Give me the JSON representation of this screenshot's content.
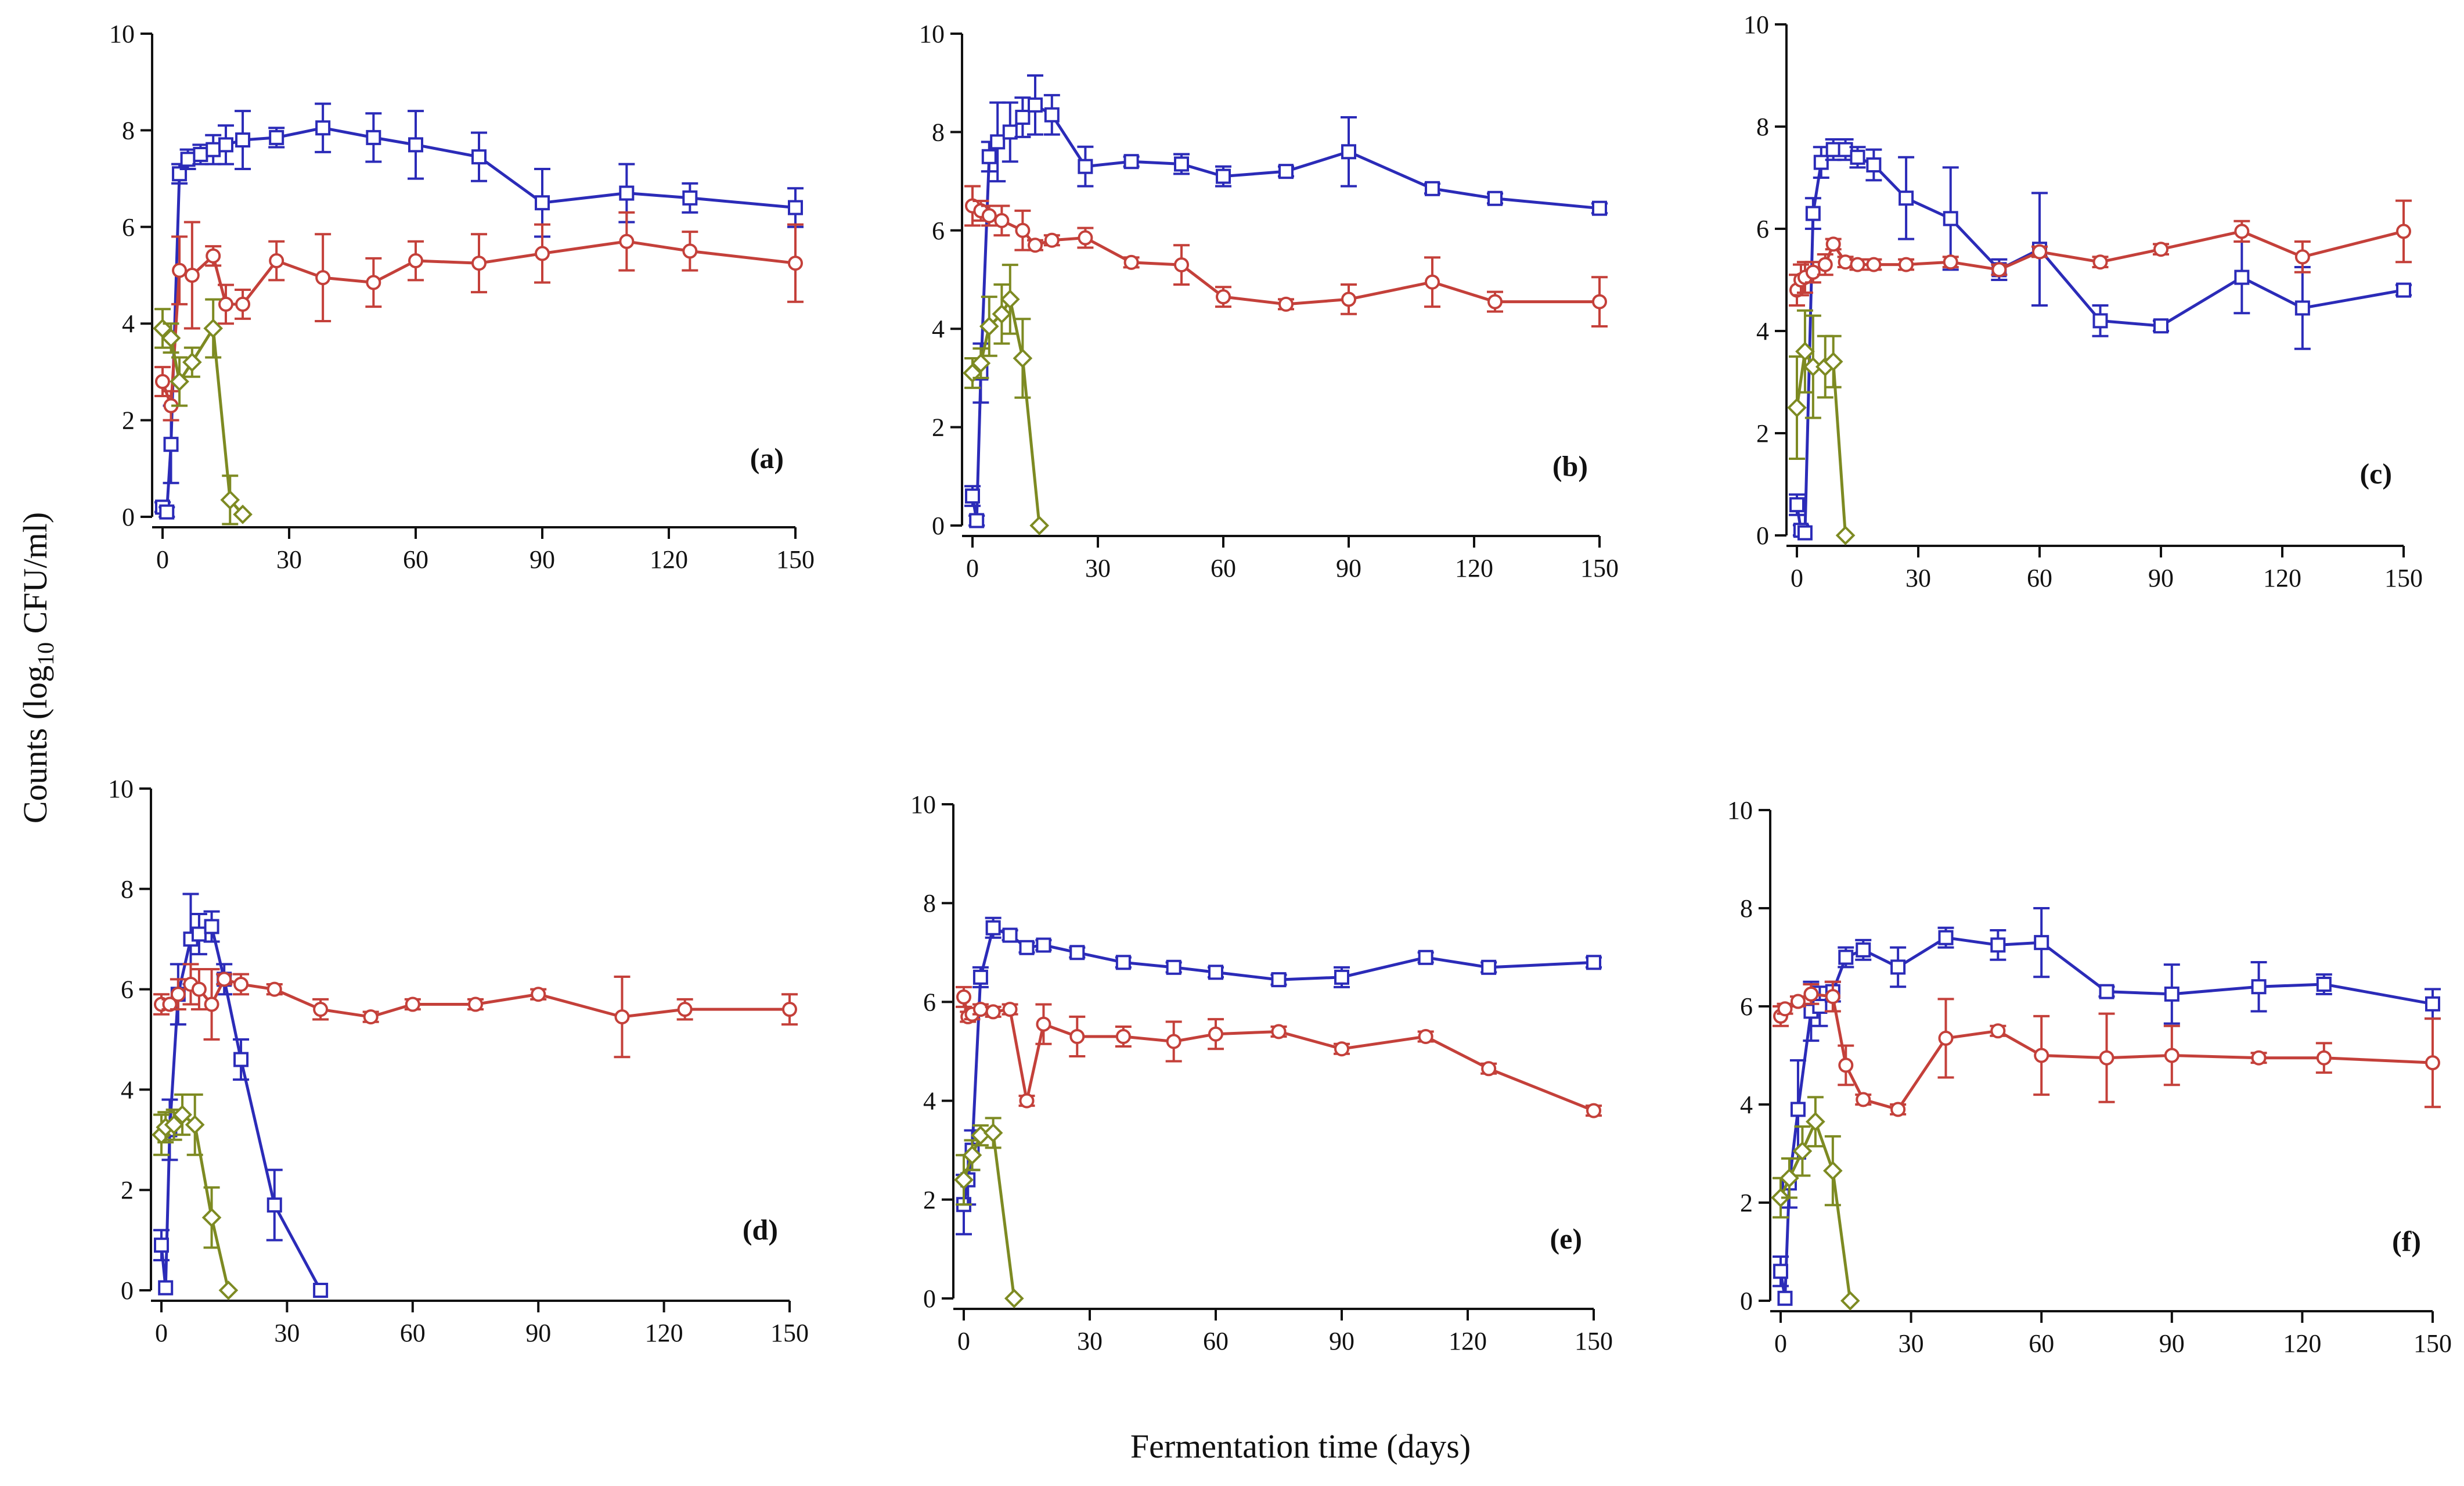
{
  "figure": {
    "ylabel": "Counts (log10 CFU/ml)",
    "ylabel_main": "Counts (log",
    "ylabel_sub": "10",
    "ylabel_tail": " CFU/ml)",
    "xlabel": "Fermentation time (days)"
  },
  "series_styles": [
    {
      "key": "blue",
      "color": "#2b2bb8",
      "marker": "square"
    },
    {
      "key": "red",
      "color": "#c4403a",
      "marker": "circle"
    },
    {
      "key": "olive",
      "color": "#7d8a22",
      "marker": "diamond"
    }
  ],
  "chart_data": [
    {
      "type": "line",
      "panel": "(a)",
      "xlim": [
        0,
        150
      ],
      "ylim": [
        0,
        10
      ],
      "xticks": [
        0,
        30,
        60,
        90,
        120,
        150
      ],
      "yticks": [
        0,
        2,
        4,
        6,
        8,
        10
      ],
      "series": [
        {
          "style": "blue",
          "x": [
            0,
            1,
            2,
            4,
            6,
            9,
            12,
            15,
            19,
            27,
            38,
            50,
            60,
            75,
            90,
            110,
            125,
            150
          ],
          "y": [
            0.2,
            0.1,
            1.5,
            7.1,
            7.4,
            7.5,
            7.6,
            7.7,
            7.8,
            7.85,
            8.05,
            7.85,
            7.7,
            7.45,
            6.5,
            6.7,
            6.6,
            6.4
          ],
          "err": [
            0.1,
            0.1,
            0.8,
            0.2,
            0.2,
            0.2,
            0.3,
            0.4,
            0.6,
            0.2,
            0.5,
            0.5,
            0.7,
            0.5,
            0.7,
            0.6,
            0.3,
            0.4
          ]
        },
        {
          "style": "red",
          "x": [
            0,
            2,
            4,
            7,
            12,
            15,
            19,
            27,
            38,
            50,
            60,
            75,
            90,
            110,
            125,
            150
          ],
          "y": [
            2.8,
            2.3,
            5.1,
            5.0,
            5.4,
            4.4,
            4.4,
            5.3,
            4.95,
            4.85,
            5.3,
            5.25,
            5.45,
            5.7,
            5.5,
            5.25
          ],
          "err": [
            0.3,
            0.3,
            0.7,
            1.1,
            0.2,
            0.4,
            0.3,
            0.4,
            0.9,
            0.5,
            0.4,
            0.6,
            0.6,
            0.6,
            0.4,
            0.8
          ]
        },
        {
          "style": "olive",
          "x": [
            0,
            2,
            4,
            7,
            12,
            16,
            19
          ],
          "y": [
            3.9,
            3.7,
            2.8,
            3.2,
            3.9,
            0.35,
            0.05
          ],
          "err": [
            0.4,
            0.3,
            0.5,
            0.3,
            0.6,
            0.5,
            0.05
          ]
        }
      ]
    },
    {
      "type": "line",
      "panel": "(b)",
      "xlim": [
        0,
        150
      ],
      "ylim": [
        0,
        10
      ],
      "xticks": [
        0,
        30,
        60,
        90,
        120,
        150
      ],
      "yticks": [
        0,
        2,
        4,
        6,
        8,
        10
      ],
      "series": [
        {
          "style": "blue",
          "x": [
            0,
            1,
            2,
            4,
            6,
            9,
            12,
            15,
            19,
            27,
            38,
            50,
            60,
            75,
            90,
            110,
            125,
            150
          ],
          "y": [
            0.6,
            0.1,
            3.1,
            7.5,
            7.8,
            8.0,
            8.3,
            8.55,
            8.35,
            7.3,
            7.4,
            7.35,
            7.1,
            7.2,
            7.6,
            6.85,
            6.65,
            6.45
          ],
          "err": [
            0.2,
            0.1,
            0.6,
            0.3,
            0.8,
            0.6,
            0.4,
            0.6,
            0.4,
            0.4,
            0.1,
            0.2,
            0.2,
            0.1,
            0.7,
            0.1,
            0.1,
            0.1
          ]
        },
        {
          "style": "red",
          "x": [
            0,
            2,
            4,
            7,
            12,
            15,
            19,
            27,
            38,
            50,
            60,
            75,
            90,
            110,
            125,
            150
          ],
          "y": [
            6.5,
            6.4,
            6.3,
            6.2,
            6.0,
            5.7,
            5.8,
            5.85,
            5.35,
            5.3,
            4.65,
            4.5,
            4.6,
            4.95,
            4.55,
            4.55
          ],
          "err": [
            0.4,
            0.2,
            0.2,
            0.3,
            0.4,
            0.1,
            0.1,
            0.2,
            0.1,
            0.4,
            0.2,
            0.1,
            0.3,
            0.5,
            0.2,
            0.5
          ]
        },
        {
          "style": "olive",
          "x": [
            0,
            2,
            4,
            7,
            9,
            12,
            16
          ],
          "y": [
            3.1,
            3.3,
            4.05,
            4.3,
            4.6,
            3.4,
            0.0
          ],
          "err": [
            0.3,
            0.3,
            0.6,
            0.6,
            0.7,
            0.8,
            0.05
          ]
        }
      ]
    },
    {
      "type": "line",
      "panel": "(c)",
      "xlim": [
        0,
        150
      ],
      "ylim": [
        0,
        10
      ],
      "xticks": [
        0,
        30,
        60,
        90,
        120,
        150
      ],
      "yticks": [
        0,
        2,
        4,
        6,
        8,
        10
      ],
      "series": [
        {
          "style": "blue",
          "x": [
            0,
            1,
            2,
            4,
            6,
            9,
            12,
            15,
            19,
            27,
            38,
            50,
            60,
            75,
            90,
            110,
            125,
            150
          ],
          "y": [
            0.6,
            0.1,
            0.05,
            6.3,
            7.3,
            7.55,
            7.55,
            7.4,
            7.25,
            6.6,
            6.2,
            5.2,
            5.6,
            4.2,
            4.1,
            5.05,
            4.45,
            4.8
          ],
          "err": [
            0.2,
            0.1,
            0.05,
            0.3,
            0.3,
            0.2,
            0.2,
            0.2,
            0.3,
            0.8,
            1.0,
            0.2,
            1.1,
            0.3,
            0.1,
            0.7,
            0.8,
            0.1
          ]
        },
        {
          "style": "red",
          "x": [
            0,
            1,
            2,
            4,
            7,
            9,
            12,
            15,
            19,
            27,
            38,
            50,
            60,
            75,
            90,
            110,
            125,
            150
          ],
          "y": [
            4.8,
            5.0,
            5.05,
            5.15,
            5.3,
            5.7,
            5.35,
            5.3,
            5.3,
            5.3,
            5.35,
            5.2,
            5.55,
            5.35,
            5.6,
            5.95,
            5.45,
            5.95
          ],
          "err": [
            0.3,
            0.3,
            0.3,
            0.2,
            0.2,
            0.1,
            0.1,
            0.1,
            0.1,
            0.1,
            0.1,
            0.1,
            0.1,
            0.1,
            0.1,
            0.2,
            0.3,
            0.6
          ]
        },
        {
          "style": "olive",
          "x": [
            0,
            2,
            4,
            7,
            9,
            12
          ],
          "y": [
            2.5,
            3.6,
            3.3,
            3.3,
            3.4,
            0.0
          ],
          "err": [
            1.0,
            0.8,
            1.0,
            0.6,
            0.5,
            0.05
          ]
        }
      ]
    },
    {
      "type": "line",
      "panel": "(d)",
      "xlim": [
        0,
        150
      ],
      "ylim": [
        0,
        10
      ],
      "xticks": [
        0,
        30,
        60,
        90,
        120,
        150
      ],
      "yticks": [
        0,
        2,
        4,
        6,
        8,
        10
      ],
      "series": [
        {
          "style": "blue",
          "x": [
            0,
            1,
            2,
            4,
            7,
            9,
            12,
            15,
            19,
            27,
            38
          ],
          "y": [
            0.9,
            0.05,
            3.2,
            5.9,
            7.0,
            7.1,
            7.25,
            6.2,
            4.6,
            1.7,
            0.0
          ],
          "err": [
            0.3,
            0.05,
            0.6,
            0.6,
            0.9,
            0.4,
            0.3,
            0.3,
            0.4,
            0.7,
            0.05
          ]
        },
        {
          "style": "red",
          "x": [
            0,
            2,
            4,
            7,
            9,
            12,
            15,
            19,
            27,
            38,
            50,
            60,
            75,
            90,
            110,
            125,
            150
          ],
          "y": [
            5.7,
            5.7,
            5.9,
            6.1,
            6.0,
            5.7,
            6.2,
            6.1,
            6.0,
            5.6,
            5.45,
            5.7,
            5.7,
            5.9,
            5.45,
            5.6,
            5.6
          ],
          "err": [
            0.2,
            0.1,
            0.3,
            0.4,
            0.4,
            0.7,
            0.1,
            0.2,
            0.1,
            0.2,
            0.1,
            0.1,
            0.1,
            0.1,
            0.8,
            0.2,
            0.3
          ]
        },
        {
          "style": "olive",
          "x": [
            0,
            1,
            3,
            5,
            8,
            12,
            16
          ],
          "y": [
            3.1,
            3.25,
            3.3,
            3.5,
            3.3,
            1.45,
            0.0
          ],
          "err": [
            0.4,
            0.3,
            0.3,
            0.4,
            0.6,
            0.6,
            0.05
          ]
        }
      ]
    },
    {
      "type": "line",
      "panel": "(e)",
      "xlim": [
        0,
        150
      ],
      "ylim": [
        0,
        10
      ],
      "xticks": [
        0,
        30,
        60,
        90,
        120,
        150
      ],
      "yticks": [
        0,
        2,
        4,
        6,
        8,
        10
      ],
      "series": [
        {
          "style": "blue",
          "x": [
            0,
            1,
            2,
            4,
            7,
            11,
            15,
            19,
            27,
            38,
            50,
            60,
            75,
            90,
            110,
            125,
            150
          ],
          "y": [
            1.9,
            2.4,
            3.0,
            6.5,
            7.5,
            7.35,
            7.1,
            7.15,
            7.0,
            6.8,
            6.7,
            6.6,
            6.45,
            6.5,
            6.9,
            6.7,
            6.8
          ],
          "err": [
            0.6,
            0.5,
            0.4,
            0.2,
            0.2,
            0.1,
            0.1,
            0.1,
            0.1,
            0.1,
            0.1,
            0.1,
            0.1,
            0.2,
            0.1,
            0.1,
            0.1
          ]
        },
        {
          "style": "red",
          "x": [
            0,
            1,
            2,
            4,
            7,
            11,
            15,
            19,
            27,
            38,
            50,
            60,
            75,
            90,
            110,
            125,
            150
          ],
          "y": [
            6.1,
            5.7,
            5.75,
            5.85,
            5.8,
            5.85,
            4.0,
            5.55,
            5.3,
            5.3,
            5.2,
            5.35,
            5.4,
            5.05,
            5.3,
            4.65,
            3.8
          ],
          "err": [
            0.2,
            0.1,
            0.1,
            0.1,
            0.1,
            0.1,
            0.1,
            0.4,
            0.4,
            0.2,
            0.4,
            0.3,
            0.1,
            0.1,
            0.1,
            0.1,
            0.1
          ]
        },
        {
          "style": "olive",
          "x": [
            0,
            2,
            4,
            7,
            12
          ],
          "y": [
            2.4,
            2.9,
            3.3,
            3.35,
            0.0
          ],
          "err": [
            0.5,
            0.3,
            0.2,
            0.3,
            0.05
          ]
        }
      ]
    },
    {
      "type": "line",
      "panel": "(f)",
      "xlim": [
        0,
        150
      ],
      "ylim": [
        0,
        10
      ],
      "xticks": [
        0,
        30,
        60,
        90,
        120,
        150
      ],
      "yticks": [
        0,
        2,
        4,
        6,
        8,
        10
      ],
      "series": [
        {
          "style": "blue",
          "x": [
            0,
            1,
            2,
            4,
            7,
            9,
            12,
            15,
            19,
            27,
            38,
            50,
            60,
            75,
            90,
            110,
            125,
            150
          ],
          "y": [
            0.6,
            0.05,
            2.4,
            3.9,
            5.9,
            6.0,
            6.3,
            7.0,
            7.15,
            6.8,
            7.4,
            7.25,
            7.3,
            6.3,
            6.25,
            6.4,
            6.45,
            6.05
          ],
          "err": [
            0.3,
            0.05,
            0.5,
            1.0,
            0.6,
            0.4,
            0.2,
            0.2,
            0.2,
            0.4,
            0.2,
            0.3,
            0.7,
            0.1,
            0.6,
            0.5,
            0.2,
            0.3
          ]
        },
        {
          "style": "red",
          "x": [
            0,
            1,
            4,
            7,
            12,
            15,
            19,
            27,
            38,
            50,
            60,
            75,
            90,
            110,
            125,
            150
          ],
          "y": [
            5.8,
            5.95,
            6.1,
            6.25,
            6.2,
            4.8,
            4.1,
            3.9,
            5.35,
            5.5,
            5.0,
            4.95,
            5.0,
            4.95,
            4.95,
            4.85
          ],
          "err": [
            0.2,
            0.1,
            0.1,
            0.2,
            0.3,
            0.4,
            0.1,
            0.1,
            0.8,
            0.1,
            0.8,
            0.9,
            0.6,
            0.1,
            0.3,
            0.9
          ]
        },
        {
          "style": "olive",
          "x": [
            0,
            2,
            5,
            8,
            12,
            16
          ],
          "y": [
            2.1,
            2.5,
            3.05,
            3.65,
            2.65,
            0.0
          ],
          "err": [
            0.4,
            0.4,
            0.5,
            0.5,
            0.7,
            0.05
          ]
        }
      ]
    }
  ]
}
